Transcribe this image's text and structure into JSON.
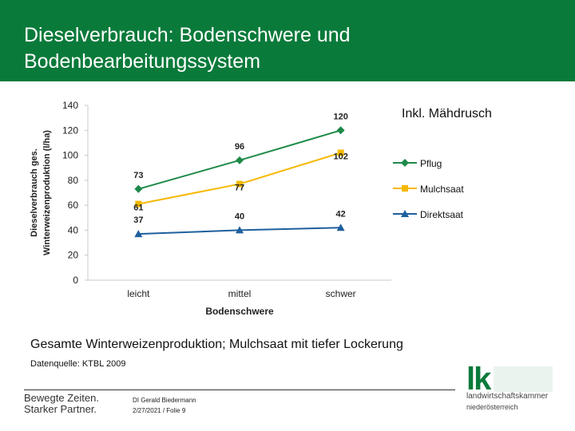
{
  "header": {
    "title_line1": "Dieselverbrauch: Bodenschwere und",
    "title_line2": "Bodenbearbeitungssystem",
    "background": "#0a7a3a"
  },
  "note": "Inkl. Mähdrusch",
  "caption": "Gesamte Winterweizenproduktion; Mulchsaat mit tiefer Lockerung",
  "source": "Datenquelle: KTBL 2009",
  "footer": {
    "slogan_line1": "Bewegte Zeiten.",
    "slogan_line2": "Starker Partner.",
    "author": "DI Gerald Biedermann",
    "date_page": "2/27/2021 / Folie 9"
  },
  "logo": {
    "mark": "lk",
    "line1": "landwirtschaftskammer",
    "line2": "niederösterreich",
    "color": "#0a7a3a"
  },
  "chart_data": {
    "type": "line",
    "categories": [
      "leicht",
      "mittel",
      "schwer"
    ],
    "xlabel": "Bodenschwere",
    "ylabel_line1": "Dieselverbrauch ges.",
    "ylabel_line2": "Winterweizenproduktion (l/ha)",
    "ylim": [
      0,
      140
    ],
    "yticks": [
      "0",
      "20",
      "40",
      "60",
      "80",
      "100",
      "120",
      "140"
    ],
    "grid": false,
    "legend_position": "right",
    "series": [
      {
        "name": "Pflug",
        "values": [
          73,
          96,
          120
        ],
        "labels": [
          "73",
          "96",
          "120"
        ],
        "color": "#1e8a4a",
        "marker": "diamond"
      },
      {
        "name": "Mulchsaat",
        "values": [
          61,
          77,
          102
        ],
        "labels": [
          "61",
          "77",
          "102"
        ],
        "color": "#f5b800",
        "marker": "square"
      },
      {
        "name": "Direktsaat",
        "values": [
          37,
          40,
          42
        ],
        "labels": [
          "37",
          "40",
          "42"
        ],
        "color": "#1f5f9e",
        "marker": "triangle"
      }
    ]
  }
}
